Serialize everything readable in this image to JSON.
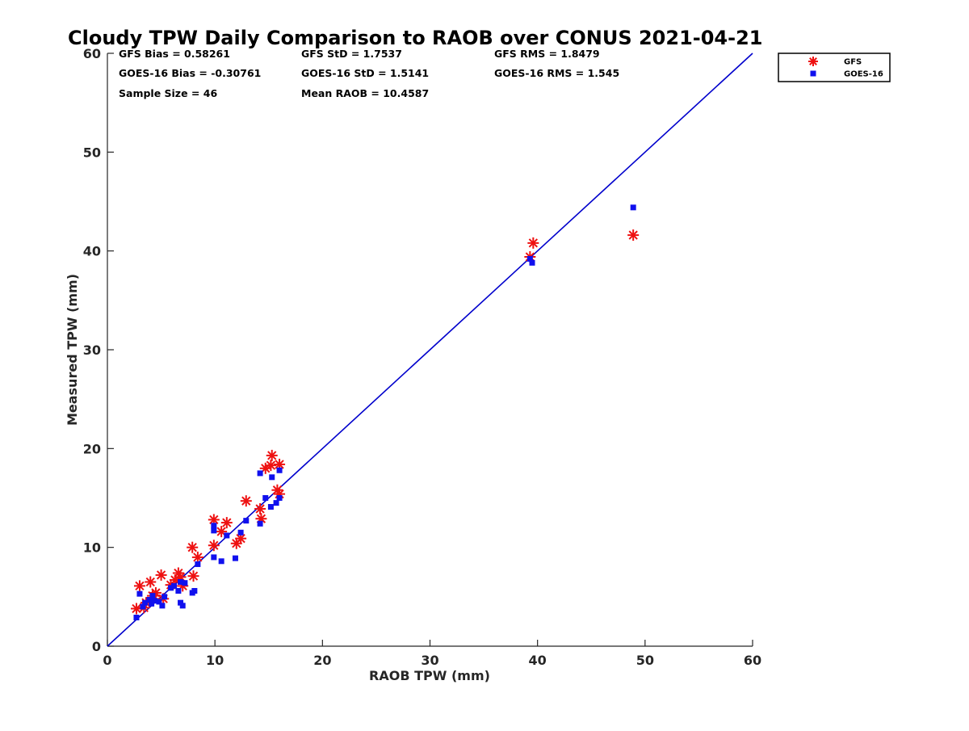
{
  "chart_data": {
    "type": "scatter",
    "title": "Cloudy TPW Daily Comparison to RAOB over CONUS 2021-04-21",
    "xlabel": "RAOB TPW (mm)",
    "ylabel": "Measured TPW (mm)",
    "xlim": [
      0,
      60
    ],
    "ylim": [
      0,
      60
    ],
    "xticks": [
      "0",
      "10",
      "20",
      "30",
      "40",
      "50",
      "60"
    ],
    "yticks": [
      "0",
      "10",
      "20",
      "30",
      "40",
      "50",
      "60"
    ],
    "grid": false,
    "legend_position": "top-right outside",
    "stats": [
      [
        "GFS Bias = 0.58261",
        "GFS StD = 1.7537",
        "GFS RMS = 1.8479"
      ],
      [
        "GOES-16 Bias = -0.30761",
        "GOES-16 StD = 1.5141",
        "GOES-16 RMS = 1.545"
      ],
      [
        "Sample Size = 46",
        "Mean RAOB = 10.4587",
        ""
      ]
    ],
    "reference_line": {
      "from": [
        0,
        0
      ],
      "to": [
        60,
        60
      ],
      "color": "#0000cc"
    },
    "series": [
      {
        "name": "GFS",
        "marker": "asterisk",
        "color": "#ee1111",
        "points": [
          [
            2.7,
            3.8
          ],
          [
            3.0,
            6.1
          ],
          [
            3.4,
            3.9
          ],
          [
            3.6,
            4.4
          ],
          [
            4.0,
            6.5
          ],
          [
            4.2,
            5.1
          ],
          [
            4.5,
            5.4
          ],
          [
            5.0,
            7.2
          ],
          [
            5.2,
            4.8
          ],
          [
            5.9,
            6.2
          ],
          [
            6.3,
            6.7
          ],
          [
            6.6,
            7.4
          ],
          [
            6.8,
            7.0
          ],
          [
            7.0,
            6.1
          ],
          [
            7.9,
            10.0
          ],
          [
            8.0,
            7.1
          ],
          [
            8.4,
            9.0
          ],
          [
            9.9,
            12.8
          ],
          [
            9.9,
            10.2
          ],
          [
            10.6,
            11.6
          ],
          [
            11.1,
            12.5
          ],
          [
            12.0,
            10.4
          ],
          [
            12.4,
            10.9
          ],
          [
            12.9,
            14.7
          ],
          [
            14.2,
            13.9
          ],
          [
            14.3,
            12.9
          ],
          [
            14.7,
            18.0
          ],
          [
            15.2,
            18.3
          ],
          [
            15.3,
            19.3
          ],
          [
            15.8,
            15.8
          ],
          [
            16.0,
            18.4
          ],
          [
            16.0,
            15.4
          ],
          [
            39.3,
            39.4
          ],
          [
            39.6,
            40.8
          ],
          [
            48.9,
            41.6
          ]
        ]
      },
      {
        "name": "GOES-16",
        "marker": "square",
        "color": "#1010ee",
        "points": [
          [
            2.7,
            2.9
          ],
          [
            3.0,
            5.3
          ],
          [
            3.3,
            4.0
          ],
          [
            3.5,
            4.4
          ],
          [
            3.9,
            4.7
          ],
          [
            4.1,
            4.3
          ],
          [
            4.2,
            5.1
          ],
          [
            4.4,
            4.6
          ],
          [
            4.8,
            4.5
          ],
          [
            5.1,
            4.1
          ],
          [
            5.3,
            5.0
          ],
          [
            5.9,
            5.9
          ],
          [
            6.2,
            6.1
          ],
          [
            6.6,
            5.6
          ],
          [
            6.8,
            4.4
          ],
          [
            6.8,
            6.5
          ],
          [
            7.0,
            4.1
          ],
          [
            7.2,
            6.4
          ],
          [
            7.9,
            5.4
          ],
          [
            8.1,
            5.6
          ],
          [
            8.4,
            8.3
          ],
          [
            9.9,
            9.0
          ],
          [
            9.9,
            11.7
          ],
          [
            9.9,
            12.2
          ],
          [
            10.6,
            8.6
          ],
          [
            11.1,
            11.2
          ],
          [
            11.9,
            8.9
          ],
          [
            12.4,
            11.5
          ],
          [
            12.9,
            12.7
          ],
          [
            14.2,
            17.5
          ],
          [
            14.2,
            12.4
          ],
          [
            14.7,
            15.0
          ],
          [
            15.2,
            14.1
          ],
          [
            15.3,
            17.1
          ],
          [
            15.7,
            14.5
          ],
          [
            16.0,
            17.8
          ],
          [
            16.0,
            15.0
          ],
          [
            39.3,
            39.2
          ],
          [
            39.5,
            38.8
          ],
          [
            48.9,
            44.4
          ]
        ]
      }
    ]
  }
}
